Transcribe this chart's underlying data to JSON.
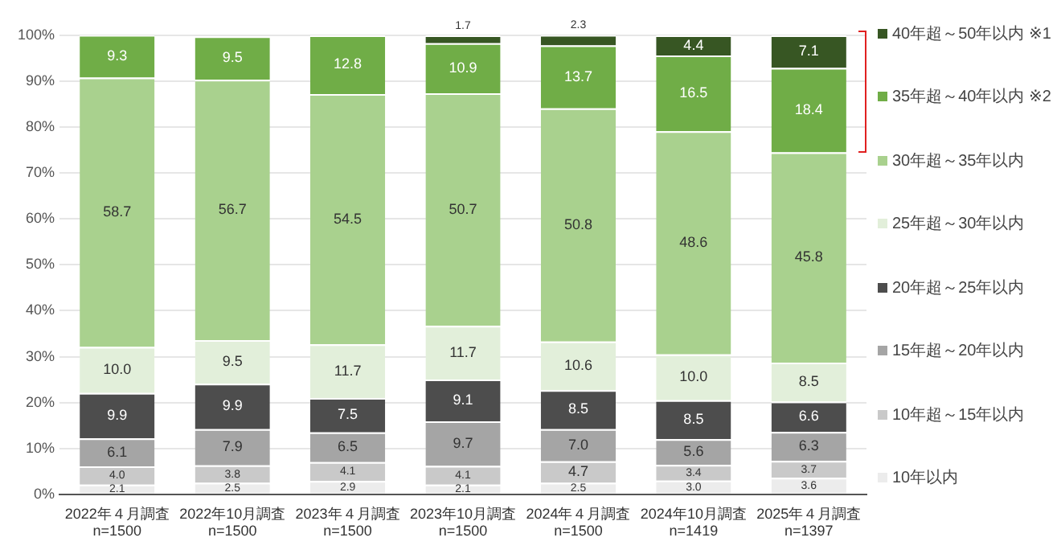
{
  "chart_data": {
    "type": "bar",
    "stacked": true,
    "grid": "y",
    "legend": "right",
    "categories": [
      "2022年４月調査\nn=1500",
      "2022年10月調査\nn=1500",
      "2023年４月調査\nn=1500",
      "2023年10月調査\nn=1500",
      "2024年４月調査\nn=1500",
      "2024年10月調査\nn=1419",
      "2025年４月調査\nn=1397"
    ],
    "ylim": [
      0,
      100
    ],
    "yticks": [
      {
        "value": 0,
        "label": "0%"
      },
      {
        "value": 10,
        "label": "10%"
      },
      {
        "value": 20,
        "label": "20%"
      },
      {
        "value": 30,
        "label": "30%"
      },
      {
        "value": 40,
        "label": "40%"
      },
      {
        "value": 50,
        "label": "50%"
      },
      {
        "value": 60,
        "label": "60%"
      },
      {
        "value": 70,
        "label": "70%"
      },
      {
        "value": 80,
        "label": "80%"
      },
      {
        "value": 90,
        "label": "90%"
      },
      {
        "value": 100,
        "label": "100%"
      }
    ],
    "series": [
      {
        "name": "10年以内",
        "color": "#ececec",
        "values": [
          2.1,
          2.5,
          2.9,
          2.1,
          2.5,
          3.0,
          3.6
        ],
        "value_labels": [
          "2.1",
          "2.5",
          "2.9",
          "2.1",
          "2.5",
          "3.0",
          "3.6"
        ]
      },
      {
        "name": "10年超～15年以内",
        "color": "#c9c9c9",
        "values": [
          4.0,
          3.8,
          4.1,
          4.1,
          4.7,
          3.4,
          3.7
        ],
        "value_labels": [
          "4.0",
          "3.8",
          "4.1",
          "4.1",
          "4.7",
          "3.4",
          "3.7"
        ]
      },
      {
        "name": "15年超～20年以内",
        "color": "#a5a5a5",
        "values": [
          6.1,
          7.9,
          6.5,
          9.7,
          7.0,
          5.6,
          6.3
        ],
        "value_labels": [
          "6.1",
          "7.9",
          "6.5",
          "9.7",
          "7.0",
          "5.6",
          "6.3"
        ]
      },
      {
        "name": "20年超～25年以内",
        "color": "#4d4d4d",
        "values": [
          9.9,
          9.9,
          7.5,
          9.1,
          8.5,
          8.5,
          6.6
        ],
        "value_labels": [
          "9.9",
          "9.9",
          "7.5",
          "9.1",
          "8.5",
          "8.5",
          "6.6"
        ]
      },
      {
        "name": "25年超～30年以内",
        "color": "#e2efda",
        "values": [
          10.0,
          9.5,
          11.7,
          11.7,
          10.6,
          10.0,
          8.5
        ],
        "value_labels": [
          "10.0",
          "9.5",
          "11.7",
          "11.7",
          "10.6",
          "10.0",
          "8.5"
        ]
      },
      {
        "name": "30年超～35年以内",
        "color": "#a9d18e",
        "values": [
          58.7,
          56.7,
          54.5,
          50.7,
          50.8,
          48.6,
          45.8
        ],
        "value_labels": [
          "58.7",
          "56.7",
          "54.5",
          "50.7",
          "50.8",
          "48.6",
          "45.8"
        ]
      },
      {
        "name": "35年超～40年以内 ※2",
        "color": "#70ad47",
        "values": [
          9.3,
          9.5,
          12.8,
          10.9,
          13.7,
          16.5,
          18.4
        ],
        "value_labels": [
          "9.3",
          "9.5",
          "12.8",
          "10.9",
          "13.7",
          "16.5",
          "18.4"
        ]
      },
      {
        "name": "40年超～50年以内 ※1",
        "color": "#375623",
        "values": [
          null,
          null,
          null,
          1.7,
          2.3,
          4.4,
          7.1
        ],
        "value_labels": [
          null,
          null,
          null,
          "1.7",
          "2.3",
          "4.4",
          "7.1"
        ]
      }
    ]
  }
}
